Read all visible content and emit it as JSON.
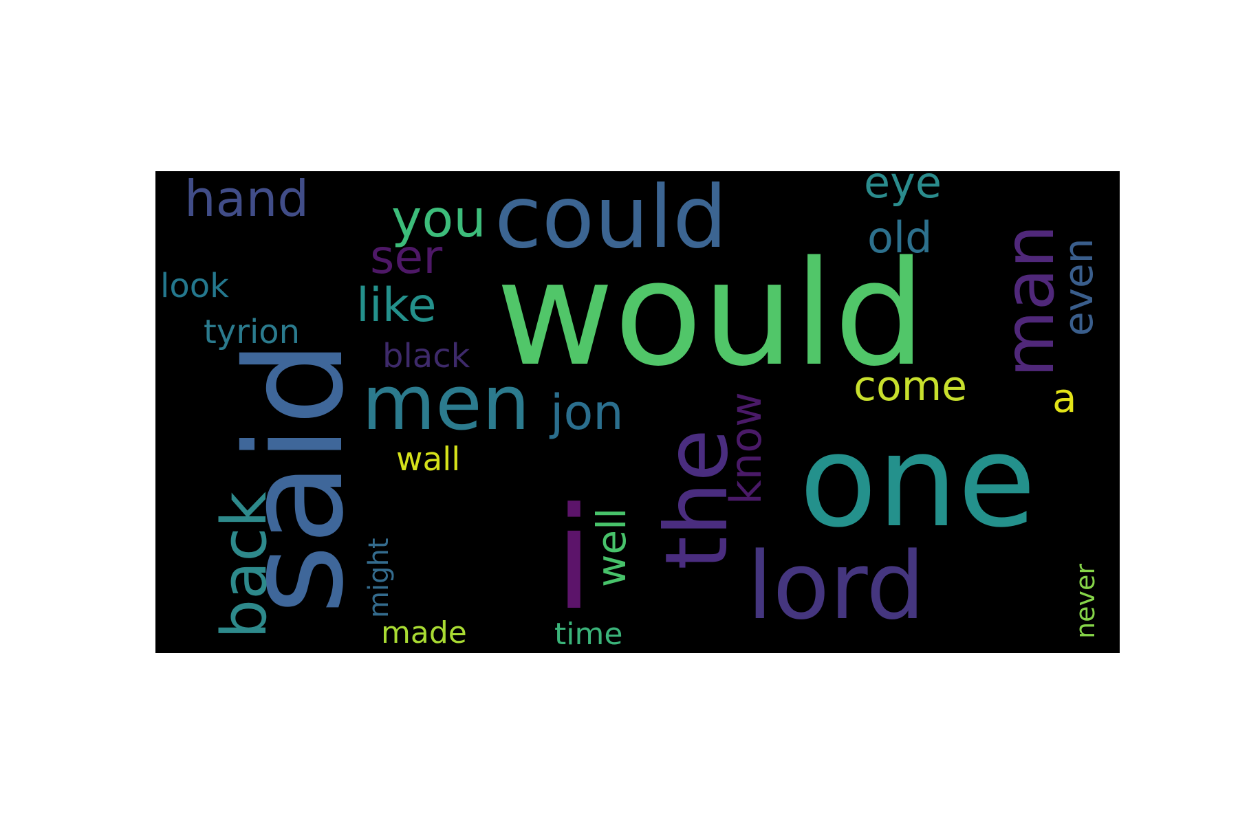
{
  "colors": {
    "background": "#000000",
    "page": "#ffffff"
  },
  "words": [
    {
      "id": "would",
      "text": "would",
      "color": "#51c669"
    },
    {
      "id": "said",
      "text": "said",
      "color": "#3f679a"
    },
    {
      "id": "one",
      "text": "one",
      "color": "#24918c"
    },
    {
      "id": "i",
      "text": "i",
      "color": "#5c146a"
    },
    {
      "id": "could",
      "text": "could",
      "color": "#3c6592"
    },
    {
      "id": "lord",
      "text": "lord",
      "color": "#45367f"
    },
    {
      "id": "the",
      "text": "the",
      "color": "#4a2d7f"
    },
    {
      "id": "man",
      "text": "man",
      "color": "#50287a"
    },
    {
      "id": "men",
      "text": "men",
      "color": "#2c7b8e"
    },
    {
      "id": "back",
      "text": "back",
      "color": "#2e8a8c"
    },
    {
      "id": "you",
      "text": "you",
      "color": "#3dbd7b"
    },
    {
      "id": "hand",
      "text": "hand",
      "color": "#414d88"
    },
    {
      "id": "eye",
      "text": "eye",
      "color": "#2b8c8d"
    },
    {
      "id": "old",
      "text": "old",
      "color": "#2d718e"
    },
    {
      "id": "ser",
      "text": "ser",
      "color": "#4e1867"
    },
    {
      "id": "even",
      "text": "even",
      "color": "#3a5e8c"
    },
    {
      "id": "like",
      "text": "like",
      "color": "#24918c"
    },
    {
      "id": "look",
      "text": "look",
      "color": "#24788e"
    },
    {
      "id": "tyrion",
      "text": "tyrion",
      "color": "#2b7b8e"
    },
    {
      "id": "black",
      "text": "black",
      "color": "#3e2a6b"
    },
    {
      "id": "jon",
      "text": "jon",
      "color": "#2b6f8e"
    },
    {
      "id": "come",
      "text": "come",
      "color": "#c8e02d"
    },
    {
      "id": "a",
      "text": "a",
      "color": "#e3e418"
    },
    {
      "id": "know",
      "text": "know",
      "color": "#4a1a68"
    },
    {
      "id": "wall",
      "text": "wall",
      "color": "#d5e21a"
    },
    {
      "id": "well",
      "text": "well",
      "color": "#48c36b"
    },
    {
      "id": "might",
      "text": "might",
      "color": "#346c8e"
    },
    {
      "id": "made",
      "text": "made",
      "color": "#a9db33"
    },
    {
      "id": "time",
      "text": "time",
      "color": "#3bb47a"
    },
    {
      "id": "never",
      "text": "never",
      "color": "#86d549"
    }
  ]
}
